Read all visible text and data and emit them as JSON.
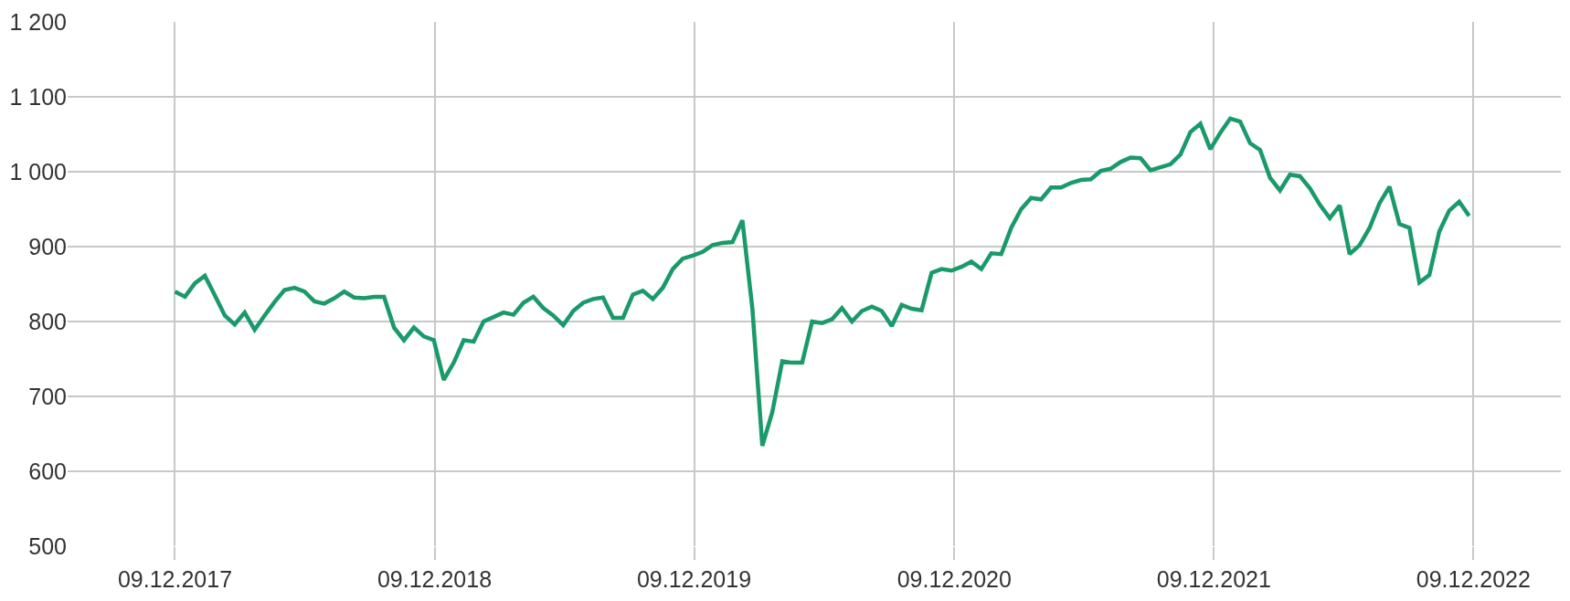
{
  "chart_data": {
    "type": "line",
    "line_style": "solid",
    "marker": "none",
    "grid": true,
    "legend": false,
    "x": [
      "2017-12-09",
      "2017-12-23",
      "2018-01-06",
      "2018-01-20",
      "2018-02-03",
      "2018-02-17",
      "2018-03-03",
      "2018-03-17",
      "2018-03-31",
      "2018-04-14",
      "2018-04-28",
      "2018-05-12",
      "2018-05-26",
      "2018-06-09",
      "2018-06-23",
      "2018-07-07",
      "2018-07-21",
      "2018-08-04",
      "2018-08-18",
      "2018-09-01",
      "2018-09-15",
      "2018-09-29",
      "2018-10-13",
      "2018-10-27",
      "2018-11-10",
      "2018-11-24",
      "2018-12-08",
      "2018-12-22",
      "2019-01-05",
      "2019-01-19",
      "2019-02-02",
      "2019-02-16",
      "2019-03-02",
      "2019-03-16",
      "2019-03-30",
      "2019-04-13",
      "2019-04-27",
      "2019-05-11",
      "2019-05-25",
      "2019-06-08",
      "2019-06-22",
      "2019-07-06",
      "2019-07-20",
      "2019-08-03",
      "2019-08-17",
      "2019-08-31",
      "2019-09-14",
      "2019-09-28",
      "2019-10-12",
      "2019-10-26",
      "2019-11-09",
      "2019-11-23",
      "2019-12-07",
      "2019-12-21",
      "2020-01-04",
      "2020-01-18",
      "2020-02-01",
      "2020-02-15",
      "2020-02-29",
      "2020-03-14",
      "2020-03-28",
      "2020-04-11",
      "2020-04-25",
      "2020-05-09",
      "2020-05-23",
      "2020-06-06",
      "2020-06-20",
      "2020-07-04",
      "2020-07-18",
      "2020-08-01",
      "2020-08-15",
      "2020-08-29",
      "2020-09-12",
      "2020-09-26",
      "2020-10-10",
      "2020-10-24",
      "2020-11-07",
      "2020-11-21",
      "2020-12-05",
      "2020-12-19",
      "2021-01-02",
      "2021-01-16",
      "2021-01-30",
      "2021-02-13",
      "2021-02-27",
      "2021-03-13",
      "2021-03-27",
      "2021-04-10",
      "2021-04-24",
      "2021-05-08",
      "2021-05-22",
      "2021-06-05",
      "2021-06-19",
      "2021-07-03",
      "2021-07-17",
      "2021-07-31",
      "2021-08-14",
      "2021-08-28",
      "2021-09-11",
      "2021-09-25",
      "2021-10-09",
      "2021-10-23",
      "2021-11-06",
      "2021-11-20",
      "2021-12-04",
      "2021-12-18",
      "2022-01-01",
      "2022-01-15",
      "2022-01-29",
      "2022-02-12",
      "2022-02-26",
      "2022-03-12",
      "2022-03-26",
      "2022-04-09",
      "2022-04-23",
      "2022-05-07",
      "2022-05-21",
      "2022-06-04",
      "2022-06-18",
      "2022-07-02",
      "2022-07-16",
      "2022-07-30",
      "2022-08-13",
      "2022-08-27",
      "2022-09-10",
      "2022-09-24",
      "2022-10-08",
      "2022-10-22",
      "2022-11-05",
      "2022-11-19",
      "2022-12-03"
    ],
    "series": [
      {
        "color": "#1a9a6a",
        "values": [
          840,
          833,
          851,
          861,
          835,
          808,
          796,
          812,
          789,
          808,
          826,
          842,
          845,
          840,
          827,
          824,
          831,
          840,
          832,
          831,
          833,
          833,
          792,
          775,
          792,
          780,
          775,
          722,
          745,
          775,
          773,
          800,
          806,
          812,
          809,
          825,
          833,
          818,
          808,
          795,
          814,
          825,
          830,
          832,
          805,
          805,
          836,
          841,
          830,
          845,
          870,
          884,
          888,
          893,
          902,
          905,
          906,
          935,
          817,
          634,
          679,
          747,
          745,
          745,
          800,
          798,
          803,
          818,
          800,
          814,
          820,
          814,
          794,
          822,
          817,
          815,
          865,
          870,
          868,
          873,
          880,
          870,
          891,
          890,
          925,
          950,
          965,
          963,
          979,
          979,
          985,
          989,
          990,
          1001,
          1004,
          1013,
          1019,
          1018,
          1002,
          1006,
          1010,
          1023,
          1053,
          1064,
          1030,
          1052,
          1071,
          1067,
          1038,
          1029,
          992,
          975,
          996,
          994,
          978,
          956,
          938,
          955,
          890,
          902,
          925,
          958,
          980,
          930,
          925,
          852,
          862,
          920,
          948,
          960,
          941
        ]
      }
    ],
    "xlim": [
      "2017-07-11",
      "2023-04-11"
    ],
    "xticks": [
      {
        "value": "2017-12-09",
        "label": "09.12.2017"
      },
      {
        "value": "2018-12-09",
        "label": "09.12.2018"
      },
      {
        "value": "2019-12-09",
        "label": "09.12.2019"
      },
      {
        "value": "2020-12-09",
        "label": "09.12.2020"
      },
      {
        "value": "2021-12-09",
        "label": "09.12.2021"
      },
      {
        "value": "2022-12-09",
        "label": "09.12.2022"
      }
    ],
    "ylim": [
      500,
      1200
    ],
    "yticks": [
      500,
      600,
      700,
      800,
      900,
      {
        "value": 1000,
        "label": "1 000"
      },
      {
        "value": 1100,
        "label": "1 100"
      },
      {
        "value": 1200,
        "label": "1 200"
      }
    ]
  }
}
